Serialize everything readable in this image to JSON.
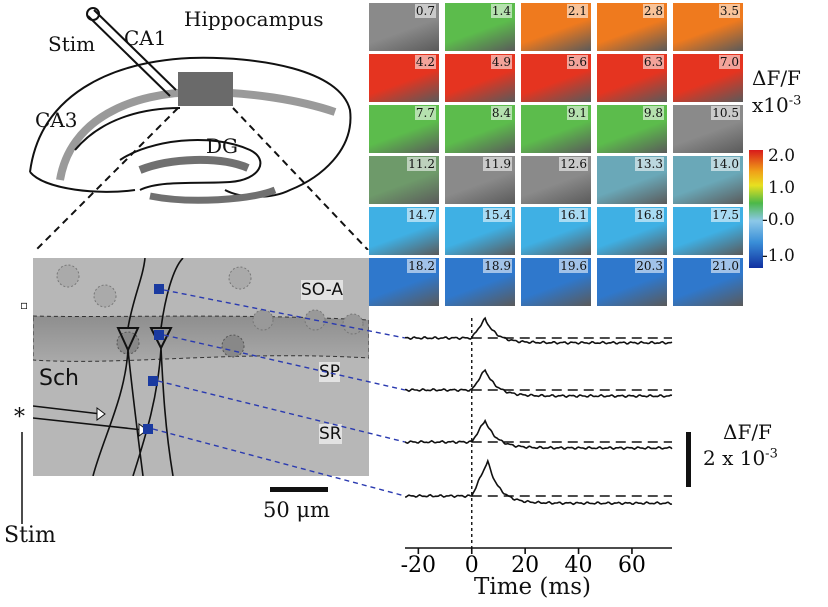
{
  "labels": {
    "stim_top": "Stim",
    "ca1": "CA1",
    "hippocampus": "Hippocampus",
    "ca3": "CA3",
    "dg": "DG",
    "df_f": "ΔF/F",
    "x10": "x10",
    "exp": "-3",
    "so_a": "SO-A",
    "sp": "SP",
    "sr": "SR",
    "sch": "Sch",
    "star": "*",
    "stim_bottom": "Stim",
    "scale_bar": "50 μm",
    "trace_scale_title": "ΔF/F",
    "trace_scale_value": "2 x 10",
    "trace_scale_exp": "-3",
    "time_axis": "Time (ms)",
    "small_marker": "▫"
  },
  "frames": [
    {
      "t": "0.7",
      "c": "gray"
    },
    {
      "t": "1.4",
      "c": "green"
    },
    {
      "t": "2.1",
      "c": "orange"
    },
    {
      "t": "2.8",
      "c": "orange"
    },
    {
      "t": "3.5",
      "c": "orange"
    },
    {
      "t": "4.2",
      "c": "red"
    },
    {
      "t": "4.9",
      "c": "red"
    },
    {
      "t": "5.6",
      "c": "red"
    },
    {
      "t": "6.3",
      "c": "red"
    },
    {
      "t": "7.0",
      "c": "red"
    },
    {
      "t": "7.7",
      "c": "green"
    },
    {
      "t": "8.4",
      "c": "green"
    },
    {
      "t": "9.1",
      "c": "green"
    },
    {
      "t": "9.8",
      "c": "green"
    },
    {
      "t": "10.5",
      "c": "gray"
    },
    {
      "t": "11.2",
      "c": "graygreen"
    },
    {
      "t": "11.9",
      "c": "gray"
    },
    {
      "t": "12.6",
      "c": "gray"
    },
    {
      "t": "13.3",
      "c": "graycyan"
    },
    {
      "t": "14.0",
      "c": "graycyan"
    },
    {
      "t": "14.7",
      "c": "cyan"
    },
    {
      "t": "15.4",
      "c": "cyan"
    },
    {
      "t": "16.1",
      "c": "cyan"
    },
    {
      "t": "16.8",
      "c": "cyan"
    },
    {
      "t": "17.5",
      "c": "cyan"
    },
    {
      "t": "18.2",
      "c": "blue"
    },
    {
      "t": "18.9",
      "c": "blue"
    },
    {
      "t": "19.6",
      "c": "blue"
    },
    {
      "t": "20.3",
      "c": "blue"
    },
    {
      "t": "21.0",
      "c": "blue"
    }
  ],
  "colorbar_ticks": [
    "2.0",
    "1.0",
    "-0.0",
    "-1.0"
  ],
  "colors": {
    "gray": "#8a8a8a",
    "green": "#5cbc4c",
    "orange": "#ef7a1e",
    "red": "#e53420",
    "graygreen": "#6e9a6a",
    "graycyan": "#6aa8b8",
    "cyan": "#3fb0e4",
    "blue": "#2f78cc"
  },
  "chart_data": {
    "type": "line",
    "title": "",
    "xlabel": "Time (ms)",
    "ylabel": "",
    "xlim": [
      -25,
      75
    ],
    "xticks": [
      "-20",
      "0",
      "20",
      "40",
      "60"
    ],
    "xtick_values": [
      -20,
      0,
      20,
      40,
      60
    ],
    "series": [
      {
        "name": "",
        "peak_time": 5,
        "peak": 1.6,
        "baseline": 0.0,
        "settle": -0.4
      },
      {
        "name": "",
        "peak_time": 5,
        "peak": 1.7,
        "baseline": 0.0,
        "settle": -0.5
      },
      {
        "name": "",
        "peak_time": 5,
        "peak": 1.8,
        "baseline": 0.0,
        "settle": -0.5
      },
      {
        "name": "",
        "peak_time": 6,
        "peak": 2.9,
        "baseline": 0.0,
        "settle": -0.6
      }
    ]
  }
}
